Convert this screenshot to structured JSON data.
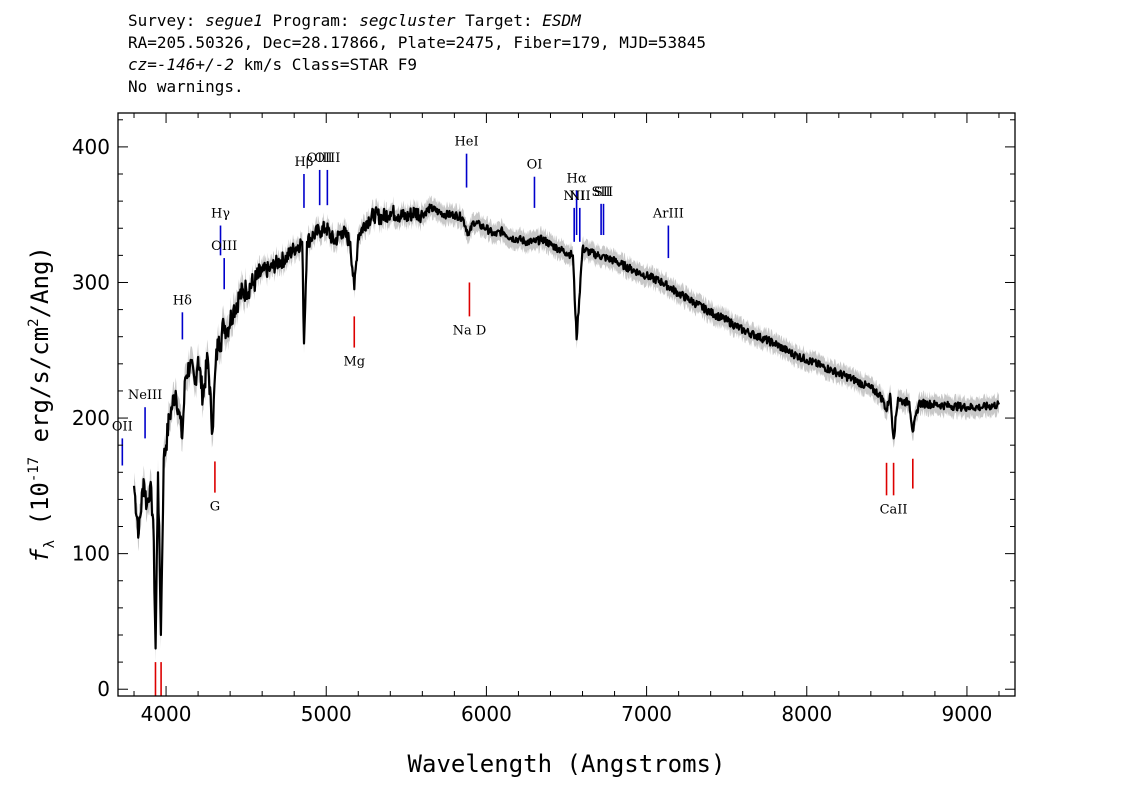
{
  "header": {
    "line1": {
      "survey_label": "Survey: ",
      "survey": "segue1",
      "program_label": " Program: ",
      "program": "segcluster",
      "target_label": " Target: ",
      "target": "ESDM"
    },
    "line2": "RA=205.50326, Dec=28.17866, Plate=2475, Fiber=179, MJD=53845",
    "line3": {
      "cz": "cz=-146+/-2",
      "rest": " km/s Class=STAR F9"
    },
    "line4": "No warnings."
  },
  "chart_data": {
    "type": "line",
    "title": "",
    "xlabel": "Wavelength (Angstroms)",
    "ylabel": "f_λ (10^-17 erg/s/cm^2/Ang)",
    "xlim": [
      3700,
      9300
    ],
    "ylim": [
      -5,
      425
    ],
    "x_ticks": [
      4000,
      5000,
      6000,
      7000,
      8000,
      9000
    ],
    "y_ticks": [
      0,
      100,
      200,
      300,
      400
    ],
    "grid": false,
    "series": [
      {
        "style": "black line with grey error band",
        "x": [
          3800,
          3830,
          3860,
          3880,
          3900,
          3920,
          3935,
          3950,
          3968,
          3985,
          4000,
          4020,
          4040,
          4060,
          4080,
          4101,
          4120,
          4150,
          4180,
          4200,
          4230,
          4260,
          4290,
          4310,
          4330,
          4340,
          4360,
          4380,
          4420,
          4460,
          4500,
          4550,
          4600,
          4650,
          4700,
          4750,
          4800,
          4850,
          4861,
          4880,
          4920,
          4960,
          5000,
          5050,
          5100,
          5150,
          5175,
          5200,
          5250,
          5300,
          5350,
          5400,
          5450,
          5500,
          5550,
          5600,
          5650,
          5700,
          5750,
          5800,
          5850,
          5890,
          5920,
          5960,
          6000,
          6050,
          6100,
          6150,
          6200,
          6250,
          6300,
          6350,
          6400,
          6450,
          6500,
          6540,
          6563,
          6600,
          6650,
          6700,
          6800,
          6900,
          7000,
          7100,
          7200,
          7300,
          7400,
          7500,
          7600,
          7700,
          7800,
          7900,
          8000,
          8100,
          8200,
          8300,
          8400,
          8450,
          8480,
          8498,
          8520,
          8542,
          8570,
          8600,
          8640,
          8662,
          8700,
          8800,
          8900,
          9000,
          9100,
          9200
        ],
        "y": [
          150,
          115,
          155,
          135,
          150,
          125,
          30,
          160,
          40,
          170,
          180,
          200,
          210,
          220,
          205,
          185,
          230,
          240,
          225,
          245,
          215,
          245,
          190,
          240,
          260,
          255,
          270,
          265,
          280,
          290,
          295,
          300,
          308,
          310,
          315,
          318,
          325,
          330,
          255,
          330,
          335,
          338,
          340,
          330,
          338,
          330,
          295,
          335,
          345,
          350,
          348,
          352,
          350,
          348,
          352,
          350,
          355,
          352,
          350,
          350,
          348,
          335,
          345,
          342,
          340,
          335,
          338,
          333,
          332,
          330,
          330,
          332,
          328,
          325,
          322,
          320,
          258,
          325,
          322,
          320,
          316,
          310,
          305,
          300,
          292,
          285,
          278,
          272,
          265,
          260,
          255,
          248,
          243,
          238,
          233,
          228,
          222,
          218,
          212,
          205,
          218,
          185,
          215,
          212,
          212,
          190,
          211,
          210,
          209,
          208,
          208,
          210
        ]
      }
    ],
    "emission_lines": [
      {
        "label": "OII",
        "x": 3727,
        "tick_y": [
          165,
          185
        ]
      },
      {
        "label": "NeIII",
        "x": 3869,
        "tick_y": [
          185,
          208
        ]
      },
      {
        "label": "Hδ",
        "x": 4102,
        "tick_y": [
          258,
          278
        ]
      },
      {
        "label": "Hγ",
        "x": 4340,
        "tick_y": [
          320,
          342
        ]
      },
      {
        "label": "OIII",
        "x": 4363,
        "tick_y": [
          295,
          318
        ]
      },
      {
        "label": "Hβ",
        "x": 4861,
        "tick_y": [
          355,
          380
        ]
      },
      {
        "label": "OIII",
        "x": 4959,
        "tick_y": [
          357,
          383
        ]
      },
      {
        "label": "OIII",
        "x": 5007,
        "tick_y": [
          357,
          383
        ]
      },
      {
        "label": "HeI",
        "x": 5876,
        "tick_y": [
          370,
          395
        ]
      },
      {
        "label": "OI",
        "x": 6300,
        "tick_y": [
          355,
          378
        ]
      },
      {
        "label": "NII",
        "x": 6548,
        "tick_y": [
          330,
          355
        ]
      },
      {
        "label": "Hα",
        "x": 6563,
        "tick_y": [
          335,
          368
        ]
      },
      {
        "label": "NII",
        "x": 6583,
        "tick_y": [
          330,
          355
        ]
      },
      {
        "label": "SII",
        "x": 6716,
        "tick_y": [
          335,
          358
        ]
      },
      {
        "label": "SII",
        "x": 6731,
        "tick_y": [
          335,
          358
        ]
      },
      {
        "label": "ArIII",
        "x": 7136,
        "tick_y": [
          318,
          342
        ]
      }
    ],
    "absorption_lines": [
      {
        "label": "",
        "x": 3934,
        "tick_y": [
          -5,
          20
        ]
      },
      {
        "label": "",
        "x": 3969,
        "tick_y": [
          -5,
          20
        ]
      },
      {
        "label": "G",
        "x": 4305,
        "tick_y": [
          145,
          168
        ]
      },
      {
        "label": "Mg",
        "x": 5175,
        "tick_y": [
          252,
          275
        ]
      },
      {
        "label": "Na D",
        "x": 5894,
        "tick_y": [
          275,
          300
        ]
      },
      {
        "label": "",
        "x": 8498,
        "tick_y": [
          143,
          167
        ]
      },
      {
        "label": "CaII",
        "x": 8542,
        "tick_y": [
          143,
          167
        ]
      },
      {
        "label": "",
        "x": 8662,
        "tick_y": [
          148,
          170
        ]
      }
    ],
    "colors": {
      "spectrum": "#000000",
      "error_band": "#c8c8c8",
      "emission": "#0000cc",
      "absorption": "#dd0000",
      "axes": "#000000"
    }
  }
}
